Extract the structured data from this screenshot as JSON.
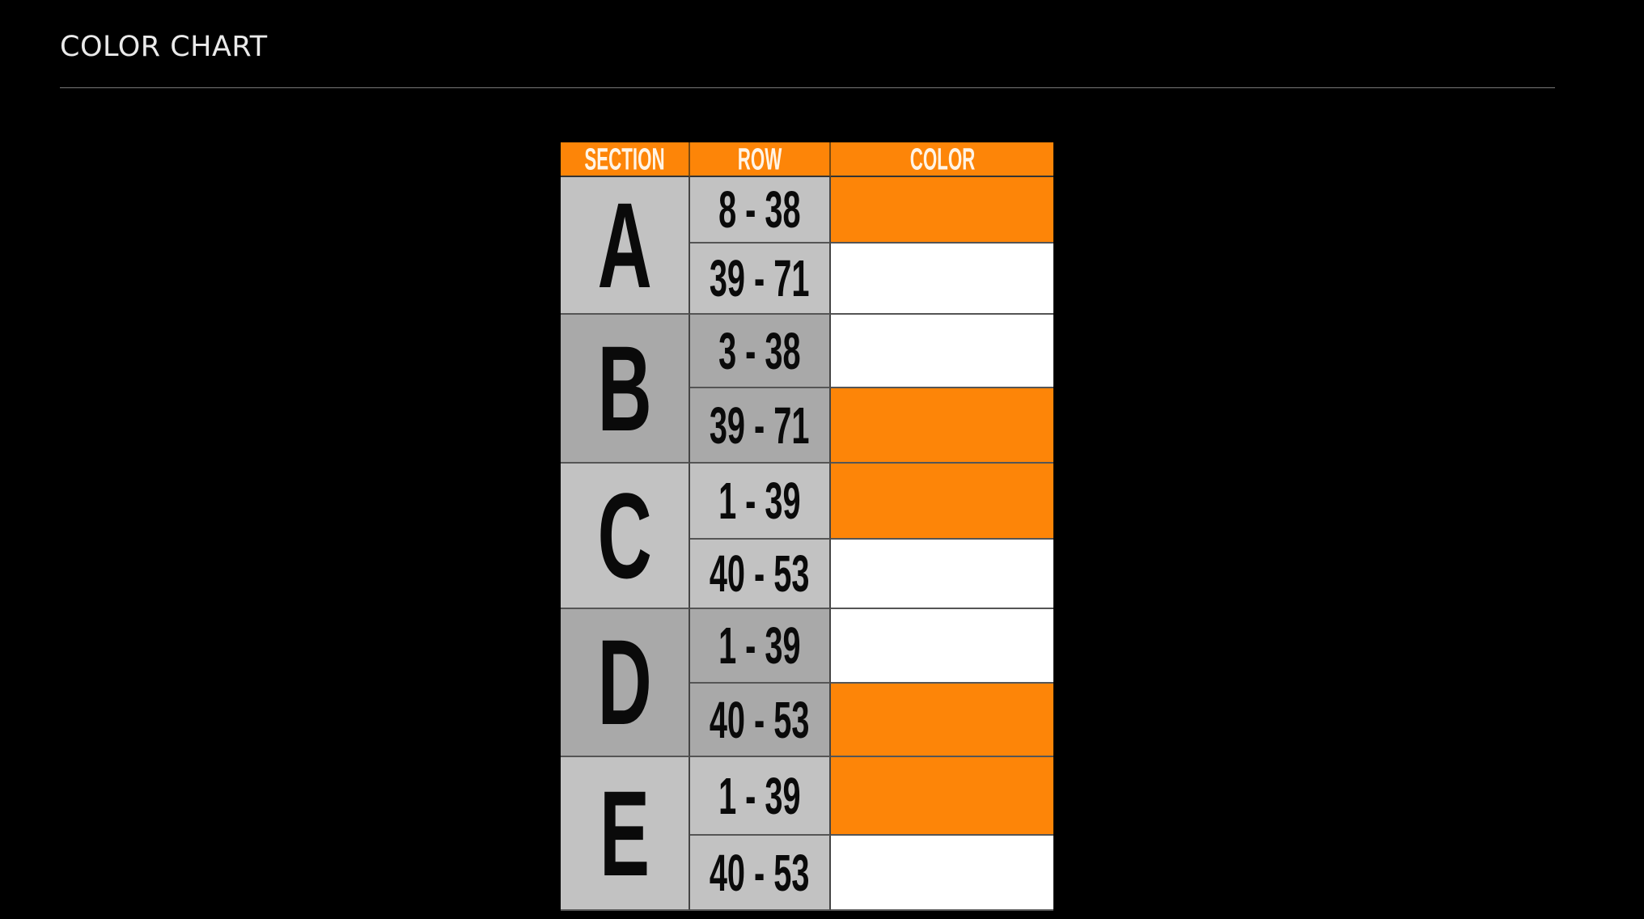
{
  "header": {
    "title": "COLOR CHART"
  },
  "chart_data": {
    "type": "table",
    "columns": [
      "SECTION",
      "ROW",
      "COLOR"
    ],
    "colors": {
      "orange": "#fd8508",
      "white": "#ffffff"
    },
    "sections": [
      {
        "section": "A",
        "rows": [
          {
            "row": "8 - 38",
            "color": "orange"
          },
          {
            "row": "39 - 71",
            "color": "white"
          }
        ]
      },
      {
        "section": "B",
        "rows": [
          {
            "row": "3 - 38",
            "color": "white"
          },
          {
            "row": "39 - 71",
            "color": "orange"
          }
        ]
      },
      {
        "section": "C",
        "rows": [
          {
            "row": "1 - 39",
            "color": "orange"
          },
          {
            "row": "40 - 53",
            "color": "white"
          }
        ]
      },
      {
        "section": "D",
        "rows": [
          {
            "row": "1 - 39",
            "color": "white"
          },
          {
            "row": "40 - 53",
            "color": "orange"
          }
        ]
      },
      {
        "section": "E",
        "rows": [
          {
            "row": "1 - 39",
            "color": "orange"
          },
          {
            "row": "40 - 53",
            "color": "white"
          }
        ]
      }
    ]
  }
}
